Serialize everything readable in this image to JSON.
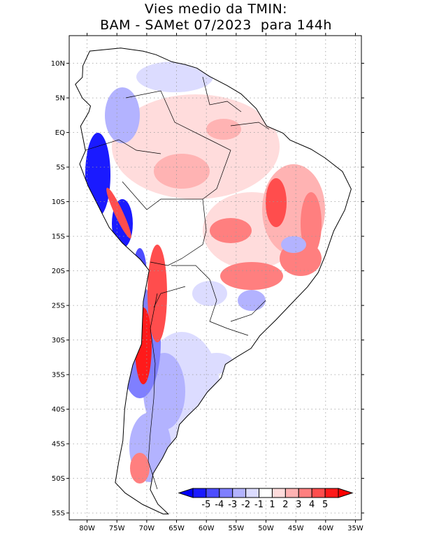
{
  "title": {
    "line1": "Vies medio da TMIN:",
    "line2": "BAM - SAMet 07/2023  para 144h"
  },
  "map": {
    "lon_range": [
      -83,
      -34
    ],
    "lat_range": [
      -56,
      14
    ],
    "lat_labels": [
      "10N",
      "5N",
      "EQ",
      "5S",
      "10S",
      "15S",
      "20S",
      "25S",
      "30S",
      "35S",
      "40S",
      "45S",
      "50S",
      "55S"
    ],
    "lat_values": [
      10,
      5,
      0,
      -5,
      -10,
      -15,
      -20,
      -25,
      -30,
      -35,
      -40,
      -45,
      -50,
      -55
    ],
    "lon_labels": [
      "80W",
      "75W",
      "70W",
      "65W",
      "60W",
      "55W",
      "50W",
      "45W",
      "40W",
      "35W"
    ],
    "lon_values": [
      -80,
      -75,
      -70,
      -65,
      -60,
      -55,
      -50,
      -45,
      -40,
      -35
    ]
  },
  "colorbar": {
    "labels": [
      "-5",
      "-4",
      "-3",
      "-2",
      "-1",
      "1",
      "2",
      "3",
      "4",
      "5"
    ],
    "colors": [
      "#1a1aff",
      "#4d4dff",
      "#7f7fff",
      "#b3b3ff",
      "#dcdcff",
      "#ffffff",
      "#ffdcdc",
      "#ffb3b3",
      "#ff7f7f",
      "#ff4d4d",
      "#ff1a1a"
    ],
    "under_color": "#0000ff",
    "over_color": "#ff0000"
  },
  "colors": {
    "land_neutral": "#ffffff",
    "coast": "#000000",
    "grid": "#9a9a9a"
  }
}
